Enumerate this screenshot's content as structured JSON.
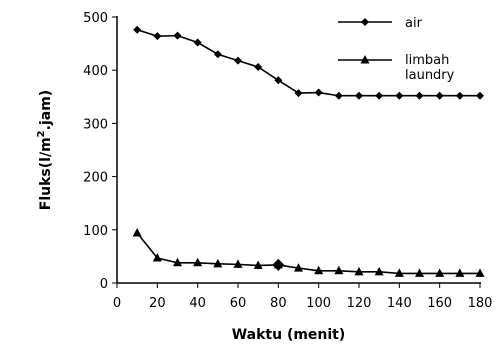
{
  "chart_data": {
    "type": "line",
    "xlabel": "Waktu (menit)",
    "ylabel_parts": {
      "prefix": "Fluks(l/m",
      "sup": "2",
      "suffix": ".jam)"
    },
    "xlim": [
      0,
      180
    ],
    "ylim": [
      0,
      500
    ],
    "xticks": [
      0,
      20,
      40,
      60,
      80,
      100,
      120,
      140,
      160,
      180
    ],
    "yticks": [
      0,
      100,
      200,
      300,
      400,
      500
    ],
    "legend_position": "top-right",
    "series": [
      {
        "name": "air",
        "marker": "diamond",
        "x": [
          10,
          20,
          30,
          40,
          50,
          60,
          70,
          80,
          90,
          100,
          110,
          120,
          130,
          140,
          150,
          160,
          170,
          180
        ],
        "y": [
          476,
          464,
          465,
          452,
          430,
          418,
          406,
          381,
          357,
          358,
          352,
          352,
          352,
          352,
          352,
          352,
          352,
          352
        ]
      },
      {
        "name": "limbah laundry",
        "legend_lines": [
          "limbah",
          "laundry"
        ],
        "marker": "triangle",
        "x": [
          10,
          20,
          30,
          40,
          50,
          60,
          70,
          80,
          90,
          100,
          110,
          120,
          130,
          140,
          150,
          160,
          170,
          180
        ],
        "y": [
          94,
          47,
          38,
          38,
          36,
          35,
          33,
          34,
          28,
          23,
          23,
          21,
          21,
          18,
          18,
          18,
          18,
          18
        ]
      }
    ]
  }
}
